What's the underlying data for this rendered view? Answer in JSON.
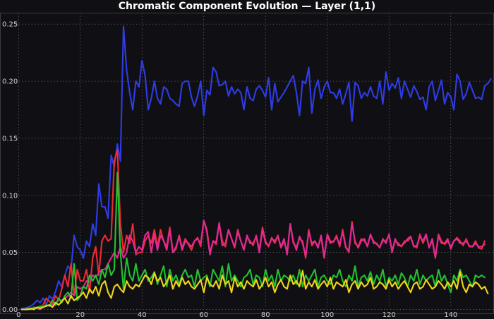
{
  "chart_data": {
    "type": "line",
    "title": "Chromatic Component Evolution — Layer (1,1)",
    "xlabel": "",
    "ylabel": "",
    "xlim": [
      -6,
      154
    ],
    "ylim": [
      -0.004,
      0.26
    ],
    "x_ticks": [
      0,
      20,
      40,
      60,
      80,
      100,
      120,
      140
    ],
    "y_ticks": [
      0.0,
      0.05,
      0.1,
      0.15,
      0.2,
      0.25
    ],
    "y_tick_labels": [
      "0.00",
      "0.05",
      "0.10",
      "0.15",
      "0.20",
      "0.25"
    ],
    "grid": true,
    "legend": "none",
    "x_start": 1,
    "series": [
      {
        "color": "#2f3ce6",
        "values": [
          0.001,
          0.001,
          0.002,
          0.003,
          0.005,
          0.008,
          0.006,
          0.01,
          0.004,
          0.012,
          0.009,
          0.016,
          0.025,
          0.02,
          0.03,
          0.038,
          0.035,
          0.065,
          0.055,
          0.052,
          0.045,
          0.06,
          0.055,
          0.075,
          0.065,
          0.11,
          0.09,
          0.09,
          0.08,
          0.135,
          0.125,
          0.145,
          0.13,
          0.248,
          0.21,
          0.19,
          0.175,
          0.2,
          0.195,
          0.218,
          0.205,
          0.175,
          0.185,
          0.2,
          0.185,
          0.18,
          0.195,
          0.193,
          0.185,
          0.183,
          0.18,
          0.178,
          0.198,
          0.2,
          0.2,
          0.186,
          0.178,
          0.187,
          0.2,
          0.17,
          0.192,
          0.188,
          0.212,
          0.208,
          0.196,
          0.197,
          0.2,
          0.187,
          0.195,
          0.189,
          0.193,
          0.19,
          0.175,
          0.195,
          0.185,
          0.183,
          0.193,
          0.196,
          0.192,
          0.186,
          0.203,
          0.175,
          0.198,
          0.182,
          0.186,
          0.19,
          0.195,
          0.2,
          0.205,
          0.19,
          0.17,
          0.2,
          0.198,
          0.212,
          0.172,
          0.193,
          0.201,
          0.185,
          0.195,
          0.2,
          0.19,
          0.19,
          0.185,
          0.193,
          0.18,
          0.189,
          0.199,
          0.165,
          0.199,
          0.196,
          0.185,
          0.19,
          0.187,
          0.195,
          0.187,
          0.185,
          0.2,
          0.18,
          0.208,
          0.192,
          0.198,
          0.194,
          0.203,
          0.185,
          0.2,
          0.193,
          0.186,
          0.196,
          0.191,
          0.184,
          0.186,
          0.175,
          0.195,
          0.2,
          0.183,
          0.192,
          0.201,
          0.18,
          0.19,
          0.186,
          0.175,
          0.206,
          0.2,
          0.184,
          0.189,
          0.199,
          0.192,
          0.185,
          0.186,
          0.184,
          0.196,
          0.198,
          0.202
        ]
      },
      {
        "color": "#ee2a36",
        "values": [
          0.0,
          0.0,
          0.0,
          0.001,
          0.0,
          0.002,
          0.001,
          0.004,
          0.01,
          0.007,
          0.005,
          0.012,
          0.008,
          0.018,
          0.03,
          0.02,
          0.04,
          0.012,
          0.035,
          0.025,
          0.025,
          0.035,
          0.015,
          0.045,
          0.055,
          0.03,
          0.06,
          0.065,
          0.06,
          0.062,
          0.13,
          0.14,
          0.075,
          0.05,
          0.065,
          0.058,
          0.075,
          0.048,
          0.05,
          0.05,
          0.06,
          0.065,
          0.058,
          0.07,
          0.055,
          0.07,
          0.06,
          0.055,
          0.072,
          0.05,
          0.053,
          0.065,
          0.054,
          0.062,
          0.057,
          0.052,
          0.06,
          0.063,
          0.055,
          0.078,
          0.07,
          0.05,
          0.06,
          0.057,
          0.075,
          0.06,
          0.055,
          0.07,
          0.062,
          0.054,
          0.07,
          0.06,
          0.053,
          0.063,
          0.06,
          0.056,
          0.065,
          0.052,
          0.072,
          0.06,
          0.055,
          0.063,
          0.058,
          0.065,
          0.054,
          0.06,
          0.05,
          0.075,
          0.058,
          0.055,
          0.062,
          0.06,
          0.045,
          0.07,
          0.056,
          0.06,
          0.055,
          0.063,
          0.045,
          0.066,
          0.06,
          0.059,
          0.065,
          0.055,
          0.07,
          0.055,
          0.05,
          0.077,
          0.058,
          0.055,
          0.062,
          0.06,
          0.056,
          0.065,
          0.06,
          0.057,
          0.055,
          0.06,
          0.06,
          0.065,
          0.052,
          0.06,
          0.058,
          0.055,
          0.06,
          0.06,
          0.063,
          0.056,
          0.054,
          0.066,
          0.058,
          0.065,
          0.055,
          0.06,
          0.045,
          0.066,
          0.06,
          0.057,
          0.06,
          0.055,
          0.06,
          0.063,
          0.06,
          0.056,
          0.062,
          0.055,
          0.055,
          0.06,
          0.054,
          0.053,
          0.06
        ]
      },
      {
        "color": "#e02a95",
        "values": [
          0.0,
          0.0,
          0.0,
          0.0,
          0.001,
          0.001,
          0.0,
          0.002,
          0.003,
          0.004,
          0.004,
          0.006,
          0.008,
          0.008,
          0.01,
          0.012,
          0.015,
          0.012,
          0.02,
          0.018,
          0.02,
          0.025,
          0.024,
          0.03,
          0.028,
          0.032,
          0.035,
          0.035,
          0.04,
          0.045,
          0.05,
          0.045,
          0.055,
          0.045,
          0.05,
          0.065,
          0.06,
          0.05,
          0.055,
          0.052,
          0.065,
          0.068,
          0.05,
          0.066,
          0.052,
          0.065,
          0.06,
          0.052,
          0.07,
          0.05,
          0.055,
          0.064,
          0.052,
          0.06,
          0.058,
          0.055,
          0.06,
          0.062,
          0.058,
          0.078,
          0.068,
          0.048,
          0.06,
          0.059,
          0.076,
          0.056,
          0.058,
          0.07,
          0.062,
          0.055,
          0.068,
          0.06,
          0.052,
          0.065,
          0.058,
          0.058,
          0.064,
          0.05,
          0.07,
          0.058,
          0.056,
          0.062,
          0.06,
          0.064,
          0.055,
          0.062,
          0.048,
          0.075,
          0.06,
          0.052,
          0.064,
          0.058,
          0.047,
          0.068,
          0.058,
          0.06,
          0.054,
          0.065,
          0.046,
          0.065,
          0.058,
          0.06,
          0.063,
          0.057,
          0.068,
          0.054,
          0.052,
          0.075,
          0.06,
          0.054,
          0.06,
          0.062,
          0.055,
          0.066,
          0.058,
          0.058,
          0.054,
          0.062,
          0.058,
          0.066,
          0.05,
          0.062,
          0.056,
          0.056,
          0.058,
          0.062,
          0.064,
          0.055,
          0.056,
          0.064,
          0.06,
          0.066,
          0.054,
          0.062,
          0.046,
          0.064,
          0.058,
          0.058,
          0.062,
          0.053,
          0.06,
          0.062,
          0.058,
          0.058,
          0.06,
          0.056,
          0.055,
          0.058,
          0.055,
          0.055,
          0.057
        ]
      },
      {
        "color": "#22c22e",
        "values": [
          0.0,
          0.0,
          0.001,
          0.0,
          0.002,
          0.001,
          0.003,
          0.002,
          0.004,
          0.003,
          0.008,
          0.004,
          0.01,
          0.006,
          0.012,
          0.015,
          0.01,
          0.04,
          0.008,
          0.012,
          0.02,
          0.018,
          0.03,
          0.025,
          0.03,
          0.022,
          0.035,
          0.028,
          0.04,
          0.03,
          0.035,
          0.12,
          0.05,
          0.018,
          0.045,
          0.03,
          0.025,
          0.04,
          0.025,
          0.03,
          0.035,
          0.025,
          0.028,
          0.033,
          0.022,
          0.03,
          0.038,
          0.02,
          0.035,
          0.025,
          0.03,
          0.022,
          0.03,
          0.035,
          0.028,
          0.03,
          0.02,
          0.035,
          0.025,
          0.028,
          0.03,
          0.02,
          0.035,
          0.03,
          0.025,
          0.038,
          0.02,
          0.04,
          0.025,
          0.03,
          0.025,
          0.02,
          0.028,
          0.03,
          0.035,
          0.022,
          0.03,
          0.028,
          0.02,
          0.035,
          0.025,
          0.03,
          0.02,
          0.035,
          0.025,
          0.03,
          0.028,
          0.025,
          0.03,
          0.022,
          0.035,
          0.02,
          0.03,
          0.025,
          0.03,
          0.035,
          0.02,
          0.028,
          0.03,
          0.025,
          0.022,
          0.03,
          0.028,
          0.035,
          0.025,
          0.02,
          0.03,
          0.025,
          0.038,
          0.02,
          0.028,
          0.03,
          0.025,
          0.033,
          0.022,
          0.03,
          0.025,
          0.035,
          0.02,
          0.028,
          0.025,
          0.03,
          0.022,
          0.032,
          0.028,
          0.02,
          0.03,
          0.025,
          0.035,
          0.022,
          0.03,
          0.025,
          0.028,
          0.03,
          0.02,
          0.035,
          0.025,
          0.03,
          0.022,
          0.015,
          0.03,
          0.025,
          0.035,
          0.028,
          0.03,
          0.025,
          0.02,
          0.03,
          0.028,
          0.03,
          0.028
        ]
      },
      {
        "color": "#f2d418",
        "values": [
          0.0,
          0.0,
          0.0,
          0.001,
          0.0,
          0.002,
          0.001,
          0.002,
          0.003,
          0.004,
          0.002,
          0.006,
          0.004,
          0.007,
          0.01,
          0.005,
          0.012,
          0.008,
          0.01,
          0.012,
          0.015,
          0.01,
          0.018,
          0.014,
          0.02,
          0.012,
          0.022,
          0.025,
          0.015,
          0.01,
          0.02,
          0.022,
          0.018,
          0.015,
          0.025,
          0.02,
          0.018,
          0.022,
          0.02,
          0.025,
          0.03,
          0.028,
          0.022,
          0.032,
          0.025,
          0.028,
          0.02,
          0.024,
          0.03,
          0.018,
          0.025,
          0.02,
          0.028,
          0.022,
          0.025,
          0.02,
          0.018,
          0.022,
          0.026,
          0.015,
          0.028,
          0.022,
          0.02,
          0.025,
          0.018,
          0.03,
          0.022,
          0.025,
          0.015,
          0.028,
          0.02,
          0.024,
          0.018,
          0.025,
          0.022,
          0.02,
          0.026,
          0.018,
          0.022,
          0.028,
          0.02,
          0.024,
          0.015,
          0.022,
          0.026,
          0.02,
          0.018,
          0.03,
          0.022,
          0.025,
          0.02,
          0.034,
          0.018,
          0.024,
          0.02,
          0.026,
          0.018,
          0.022,
          0.025,
          0.02,
          0.028,
          0.018,
          0.024,
          0.022,
          0.02,
          0.026,
          0.015,
          0.022,
          0.025,
          0.018,
          0.024,
          0.02,
          0.022,
          0.028,
          0.018,
          0.02,
          0.024,
          0.022,
          0.018,
          0.026,
          0.02,
          0.024,
          0.018,
          0.022,
          0.025,
          0.02,
          0.015,
          0.022,
          0.024,
          0.018,
          0.02,
          0.026,
          0.022,
          0.018,
          0.02,
          0.025,
          0.022,
          0.018,
          0.024,
          0.02,
          0.025,
          0.018,
          0.033,
          0.02,
          0.015,
          0.022,
          0.02,
          0.024,
          0.022,
          0.018,
          0.02,
          0.014
        ]
      }
    ]
  }
}
